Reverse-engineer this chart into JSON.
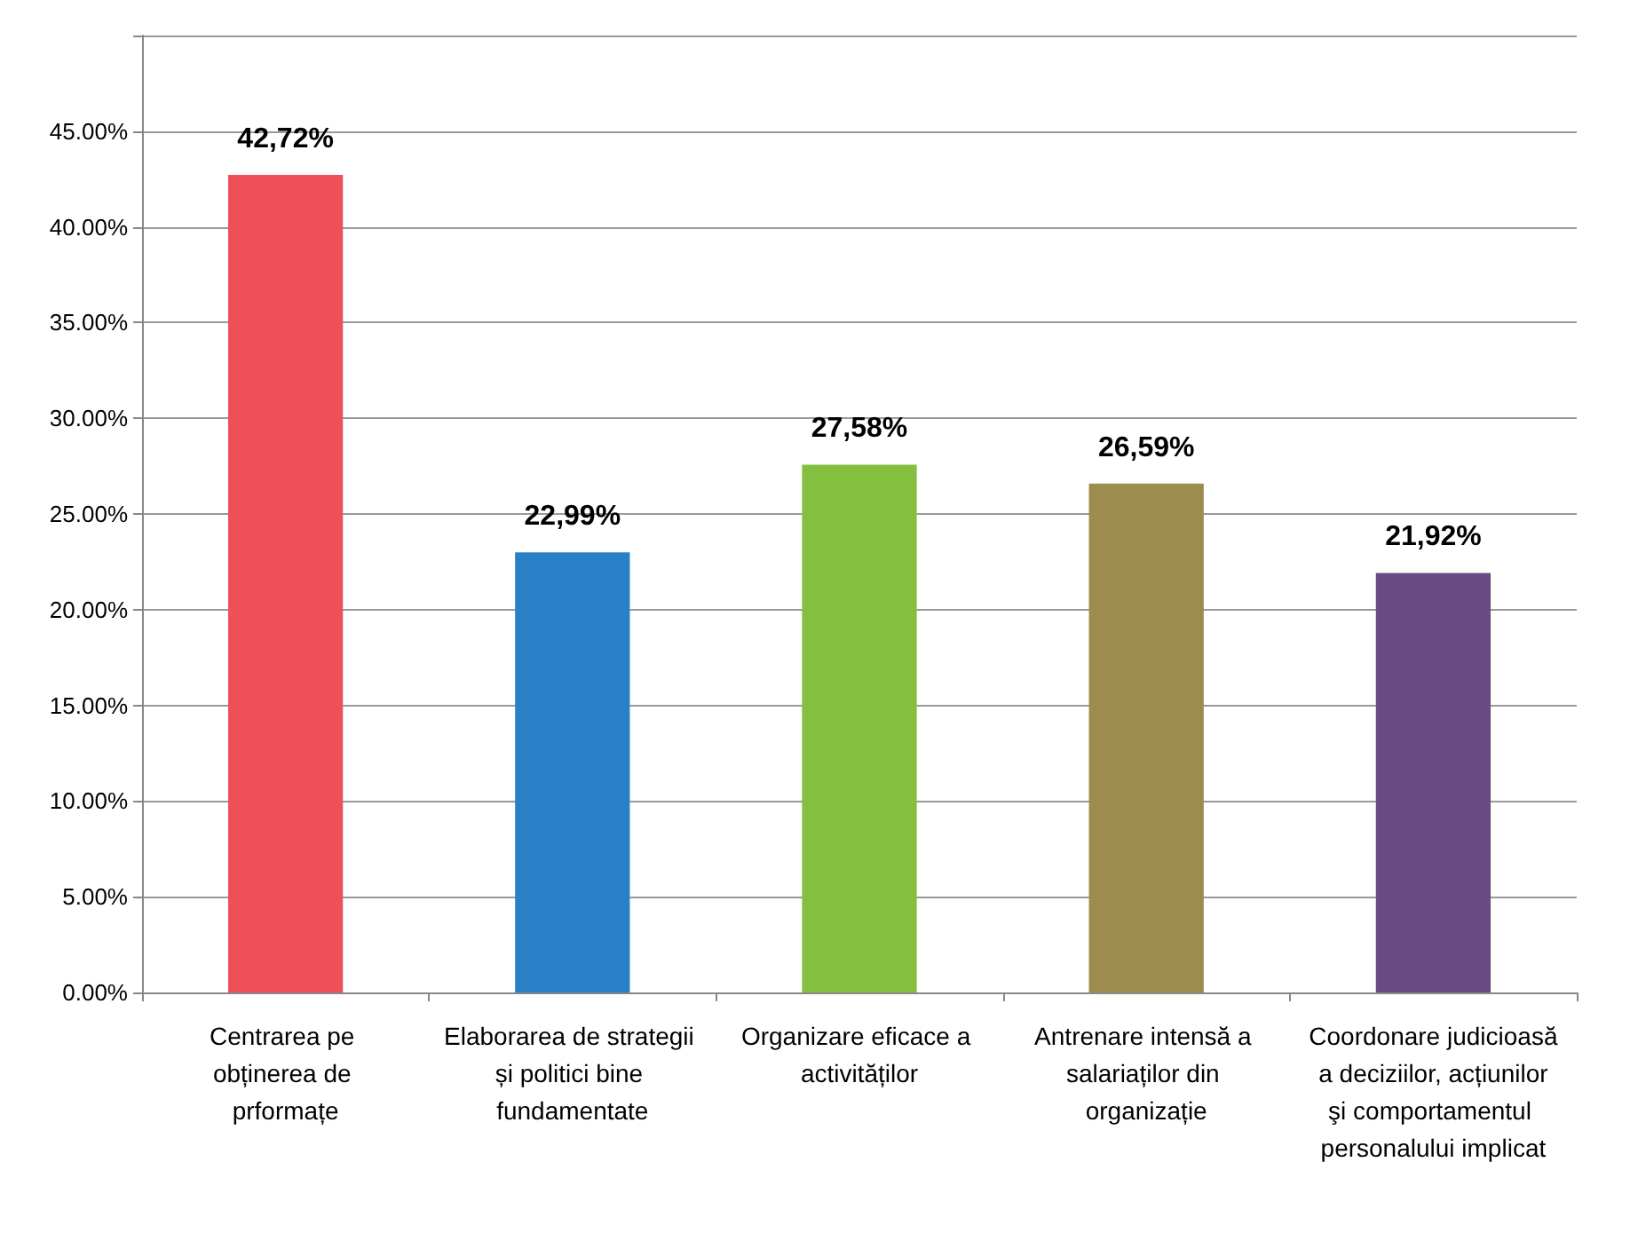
{
  "chart_data": {
    "type": "bar",
    "categories": [
      "Centrarea pe obținerea de prformațe",
      "Elaborarea de strategii și politici bine fundamentate",
      "Organizare eficace a activităților",
      "Antrenare intensă a salariaților din organizație",
      "Coordonare judicioasă a deciziilor, acțiunilor şi comportamentul personalului implicat"
    ],
    "values": [
      42.72,
      22.99,
      27.58,
      26.59,
      21.92
    ],
    "value_labels": [
      "42,72%",
      "22,99%",
      "27,58%",
      "26,59%",
      "21,92%"
    ],
    "colors": [
      "#ef4f57",
      "#2a80c6",
      "#84bf40",
      "#9c8c50",
      "#6b4a82"
    ],
    "ylim": [
      0,
      50
    ],
    "yticks": [
      {
        "value": 0,
        "label": "0.00%"
      },
      {
        "value": 5,
        "label": "5.00%"
      },
      {
        "value": 10,
        "label": "10.00%"
      },
      {
        "value": 15,
        "label": "15.00%"
      },
      {
        "value": 20,
        "label": "20.00%"
      },
      {
        "value": 25,
        "label": "25.00%"
      },
      {
        "value": 30,
        "label": "30.00%"
      },
      {
        "value": 35,
        "label": "35.00%"
      },
      {
        "value": 40,
        "label": "40.00%"
      },
      {
        "value": 45,
        "label": "45.00%"
      },
      {
        "value": 50,
        "label": null
      }
    ],
    "grid": true
  }
}
